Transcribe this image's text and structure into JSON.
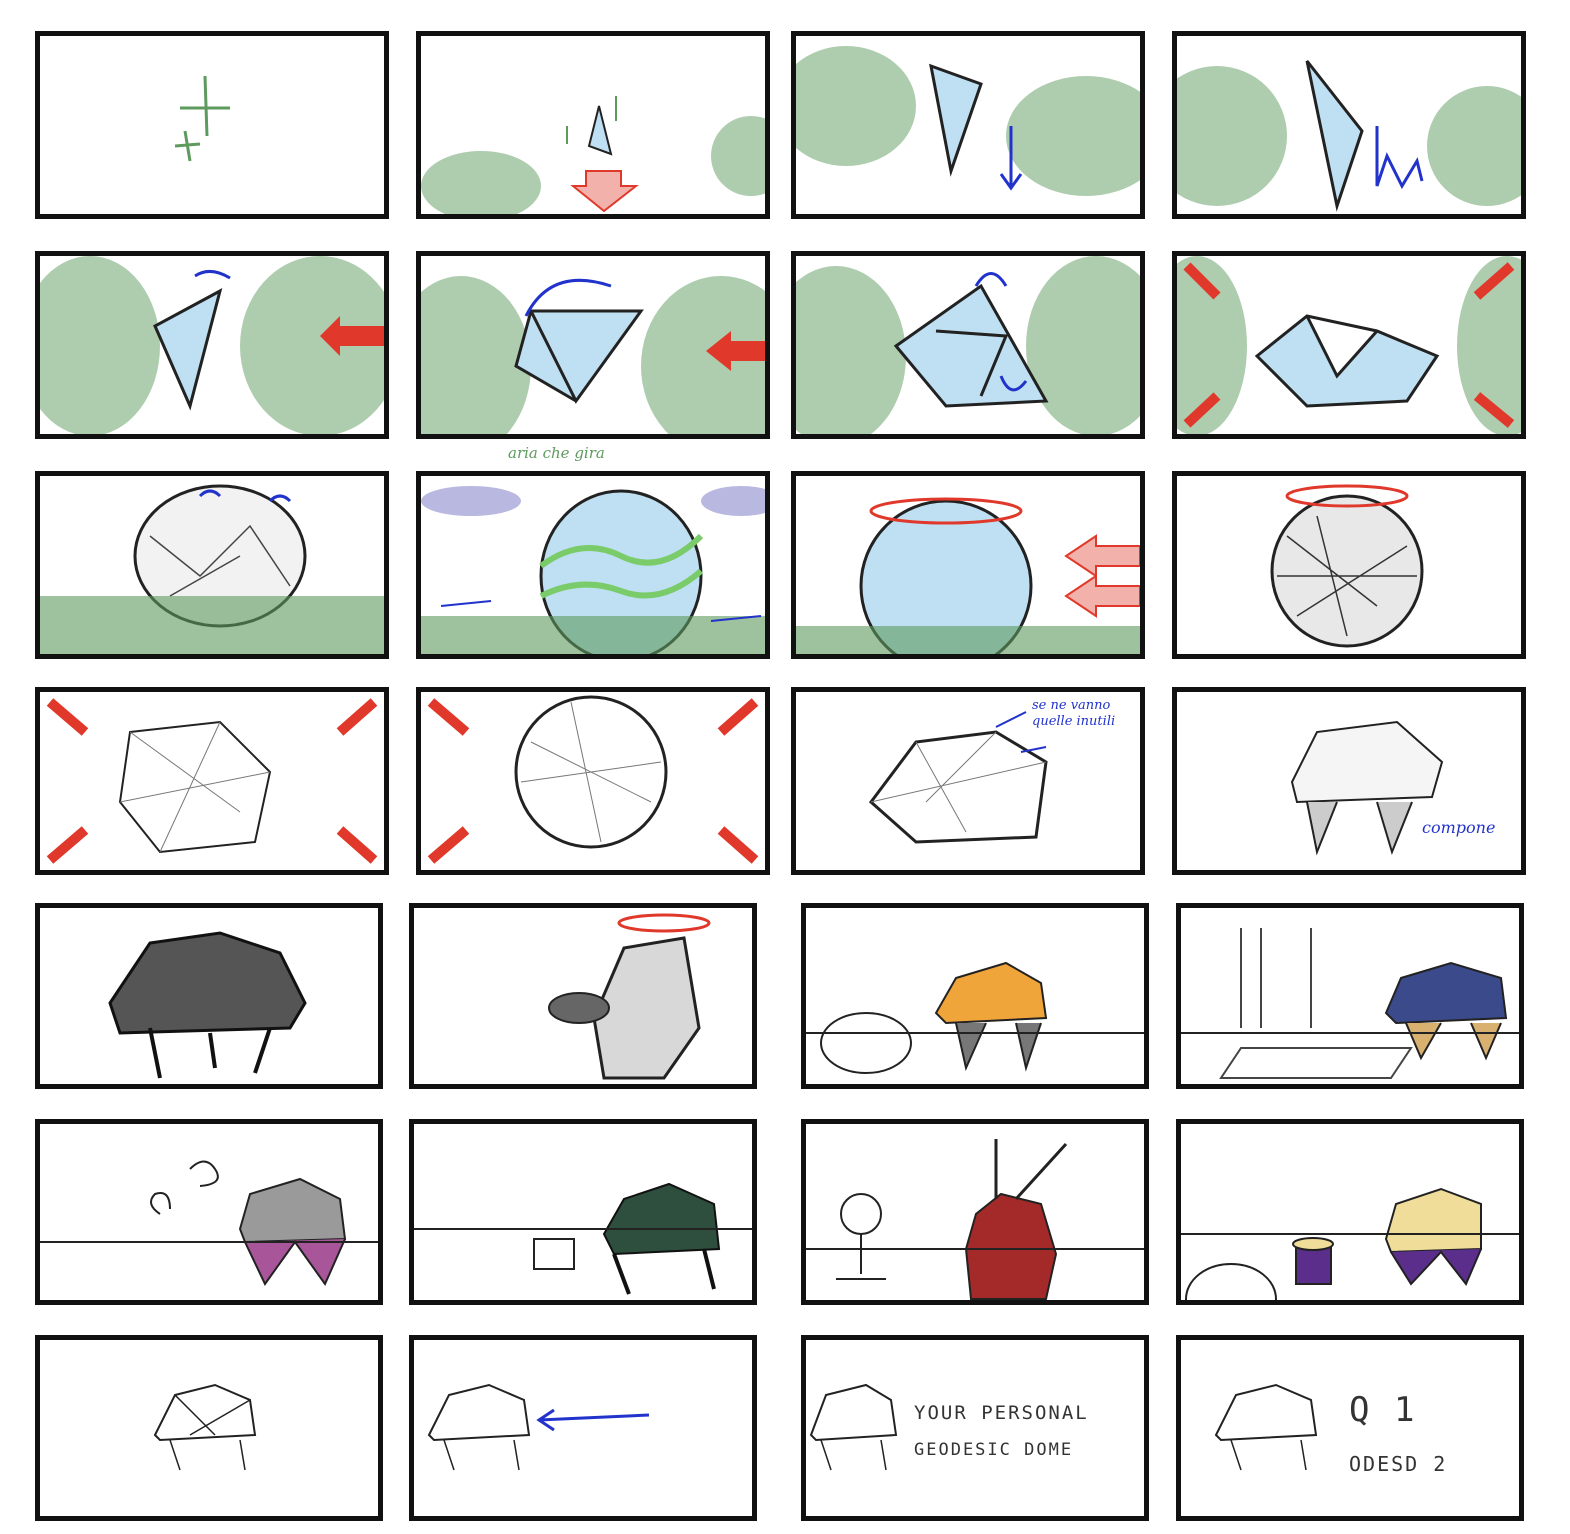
{
  "notes": {
    "aria": "aria che gira",
    "se_ne_vanno": "se ne vanno quelle inutili",
    "compone": "compone"
  },
  "captions": {
    "line1": "YOUR PERSONAL",
    "line2": "GEODESIC DOME",
    "q1": "Q 1",
    "odesd": "ODESD 2"
  },
  "colors": {
    "green": "#5e9a5e",
    "sky": "#bfe0f2",
    "red": "#e0392b",
    "blue": "#2233cc",
    "ink": "#222222",
    "orange": "#f0a53a",
    "navy": "#3a4a8a",
    "magenta": "#a8559a",
    "darkgreen": "#2e4f3e",
    "crimson": "#a42a2a",
    "cream": "#f0dd9a",
    "purple": "#5a2e8a"
  }
}
